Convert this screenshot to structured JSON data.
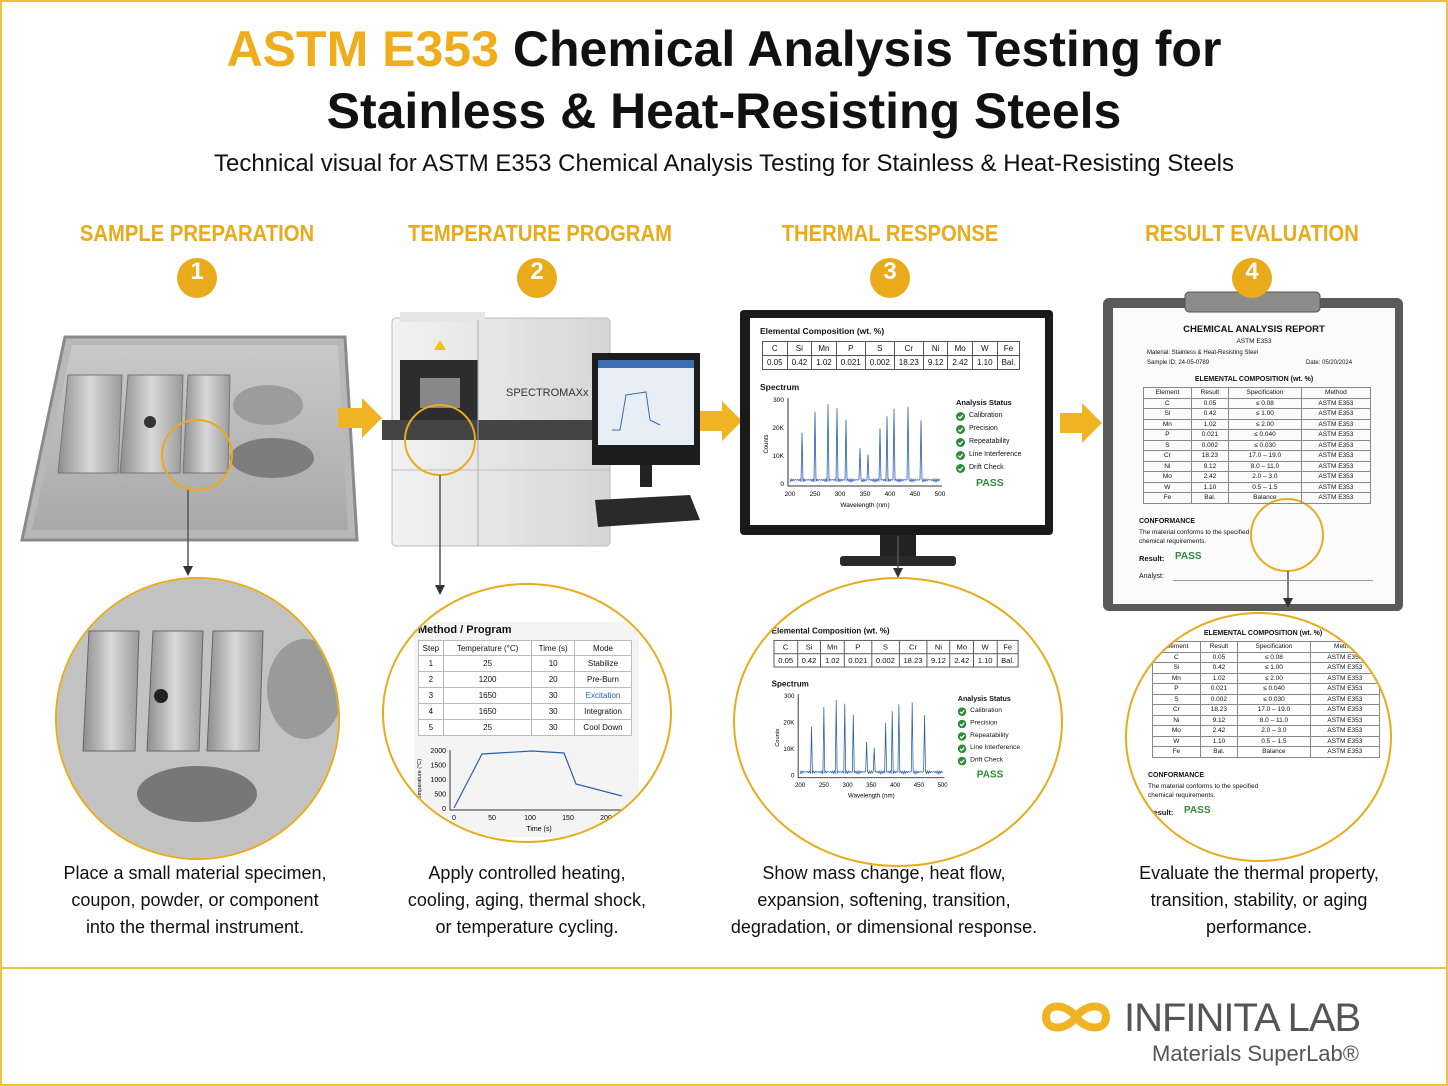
{
  "header": {
    "title_highlight": "ASTM E353",
    "title_line1": "Chemical Analysis Testing for",
    "title_line2": "Stainless & Heat-Resisting Steels",
    "subtitle": "Technical visual for ASTM E353 Chemical Analysis Testing for Stainless & Heat-Resisting Steels"
  },
  "steps": [
    {
      "label": "SAMPLE PREPARATION",
      "number": "1",
      "description": [
        "Place a small material specimen,",
        "coupon, powder, or component",
        "into the thermal instrument."
      ]
    },
    {
      "label": "TEMPERATURE PROGRAM",
      "number": "2",
      "description": [
        "Apply controlled heating,",
        "cooling, aging, thermal shock,",
        "or temperature cycling."
      ]
    },
    {
      "label": "THERMAL RESPONSE",
      "number": "3",
      "description": [
        "Show mass change, heat flow,",
        "expansion, softening, transition,",
        "degradation, or dimensional response."
      ]
    },
    {
      "label": "RESULT EVALUATION",
      "number": "4",
      "description": [
        "Evaluate the thermal property,",
        "transition, stability, or aging",
        "performance."
      ]
    }
  ],
  "instrument": {
    "brand": "SPECTROMAXx"
  },
  "composition": {
    "title": "Elemental Composition (wt. %)",
    "elements": [
      "C",
      "Si",
      "Mn",
      "P",
      "S",
      "Cr",
      "Ni",
      "Mo",
      "W",
      "Fe"
    ],
    "values": [
      "0.05",
      "0.42",
      "1.02",
      "0.021",
      "0.002",
      "18.23",
      "9.12",
      "2.42",
      "1.10",
      "Bal."
    ]
  },
  "spectrum": {
    "title": "Spectrum",
    "y_label": "Counts",
    "x_label": "Wavelength (nm)",
    "yticks": [
      "300",
      "20K",
      "10K",
      "0"
    ],
    "xticks": [
      "200",
      "250",
      "300",
      "350",
      "400",
      "450",
      "500"
    ]
  },
  "analysis_status": {
    "title": "Analysis Status",
    "checks": [
      "Calibration",
      "Precision",
      "Repeatability",
      "Line Interference",
      "Drift Check"
    ],
    "result": "PASS"
  },
  "method_program": {
    "title": "Method / Program",
    "columns": [
      "Step",
      "Temperature (°C)",
      "Time (s)",
      "Mode"
    ],
    "rows": [
      [
        "1",
        "25",
        "10",
        "Stabilize"
      ],
      [
        "2",
        "1200",
        "20",
        "Pre-Burn"
      ],
      [
        "3",
        "1650",
        "30",
        "Excitation"
      ],
      [
        "4",
        "1650",
        "30",
        "Integration"
      ],
      [
        "5",
        "25",
        "30",
        "Cool Down"
      ]
    ],
    "y_label": "Temperature (°C)",
    "yticks": [
      "2000",
      "1500",
      "1000",
      "500",
      "0"
    ],
    "x_label": "Time (s)",
    "xticks": [
      "0",
      "50",
      "100",
      "150",
      "200"
    ]
  },
  "report": {
    "title": "CHEMICAL ANALYSIS REPORT",
    "standard": "ASTM E353",
    "material": "Material:   Stainless & Heat-Resisting Steel",
    "sample_id": "Sample ID: 24-05-0789",
    "date": "Date: 05/20/2024",
    "section": "ELEMENTAL COMPOSITION (wt. %)",
    "columns": [
      "Element",
      "Result",
      "Specification",
      "Method"
    ],
    "rows": [
      [
        "C",
        "0.05",
        "≤ 0.08",
        "ASTM E353"
      ],
      [
        "Si",
        "0.42",
        "≤ 1.00",
        "ASTM E353"
      ],
      [
        "Mn",
        "1.02",
        "≤ 2.00",
        "ASTM E353"
      ],
      [
        "P",
        "0.021",
        "≤ 0.040",
        "ASTM E353"
      ],
      [
        "S",
        "0.002",
        "≤ 0.030",
        "ASTM E353"
      ],
      [
        "Cr",
        "18.23",
        "17.0 – 19.0",
        "ASTM E353"
      ],
      [
        "Ni",
        "9.12",
        "8.0 – 11.0",
        "ASTM E353"
      ],
      [
        "Mo",
        "2.42",
        "2.0 – 3.0",
        "ASTM E353"
      ],
      [
        "W",
        "1.10",
        "0.5 – 1.5",
        "ASTM E353"
      ],
      [
        "Fe",
        "Bal.",
        "Balance",
        "ASTM E353"
      ]
    ],
    "conformance_title": "CONFORMANCE",
    "conformance_text": [
      "The material conforms to the specified",
      "chemical requirements."
    ],
    "result_label": "Result:",
    "result": "PASS",
    "analyst_label": "Analyst:"
  },
  "footer": {
    "logo": "INFINITA LAB",
    "tagline": "Materials SuperLab®"
  }
}
